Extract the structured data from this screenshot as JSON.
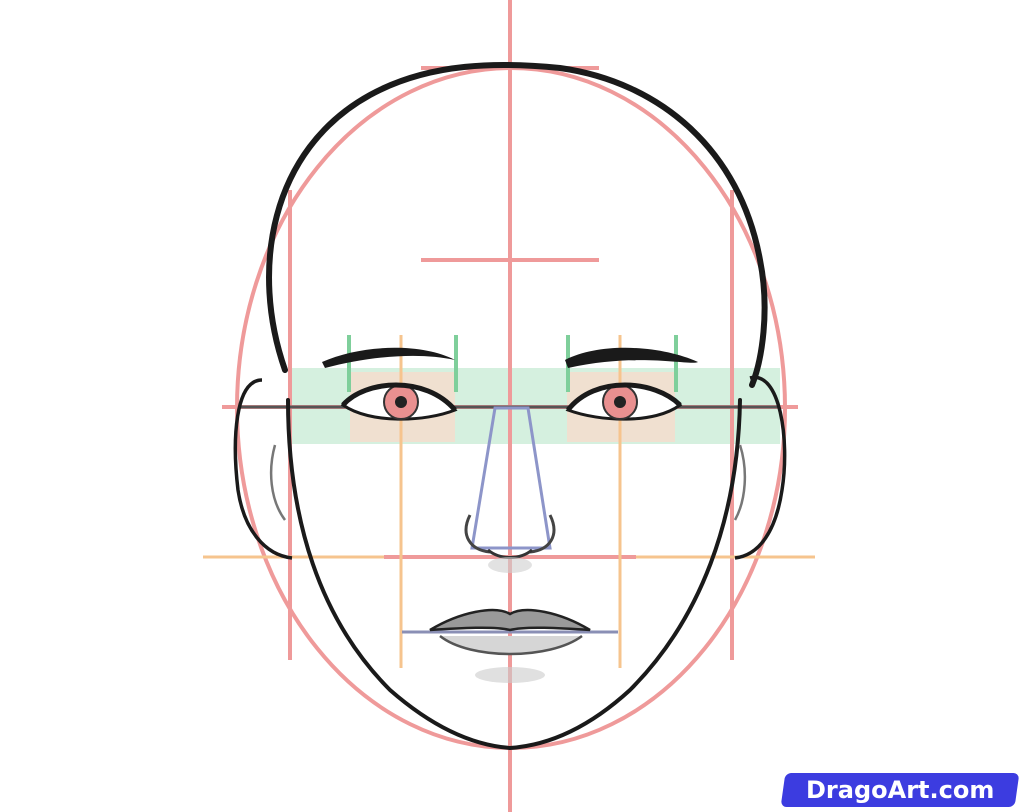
{
  "watermark": {
    "text": "DragoArt.com"
  },
  "colors": {
    "guide_pink": "#ef9a9a",
    "guide_orange": "#f6c48e",
    "guide_green": "#7fcf9b",
    "eye_band": "#d5f0df",
    "eye_highlight": "#f6dccc",
    "nose_blue": "#8d95c9",
    "lip_line": "#8a8fb5",
    "ink": "#1a1a1a",
    "watermark_bg": "#3c3ce0"
  }
}
